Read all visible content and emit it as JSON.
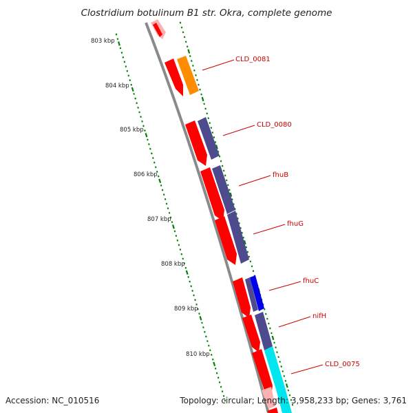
{
  "title": "Clostridium botulinum B1 str. Okra, complete genome",
  "footer": {
    "accession": "Accession: NC_010516",
    "summary": "Topology: circular; Length: 3,958,233 bp; Genes: 3,761"
  },
  "kbp_ticks": [
    "803 kbp",
    "804 kbp",
    "805 kbp",
    "806 kbp",
    "807 kbp",
    "808 kbp",
    "809 kbp",
    "810 kbp"
  ],
  "gene_labels": [
    "CLD_0081",
    "CLD_0080",
    "fhuB",
    "fhuG",
    "fhuC",
    "nifH",
    "CLD_0075"
  ],
  "colors": {
    "backbone": "#8a8a8a",
    "cds": "#ff0000",
    "cds_faded": "#ffb0b0",
    "orange_feature": "#ff8c00",
    "purple_feature": "#4e4a8e",
    "blue_feature": "#0000ee",
    "cyan_feature": "#00e5ee",
    "tick_green": "#008000",
    "label_red": "#cc0000"
  }
}
